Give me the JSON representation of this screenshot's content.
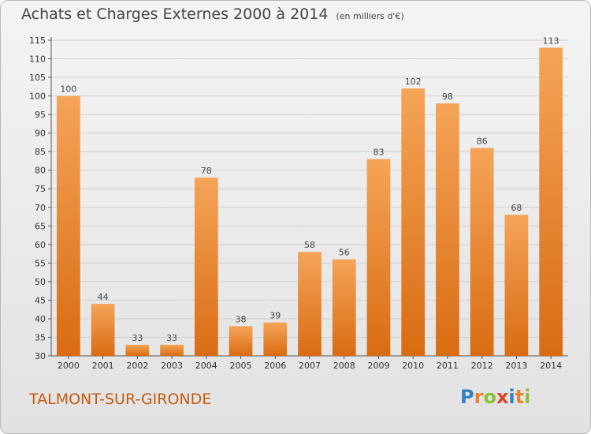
{
  "chart_data": {
    "type": "bar",
    "title": "Achats et Charges Externes 2000 à 2014",
    "subtitle": "(en milliers d'€)",
    "categories": [
      "2000",
      "2001",
      "2002",
      "2003",
      "2004",
      "2005",
      "2006",
      "2007",
      "2008",
      "2009",
      "2010",
      "2011",
      "2012",
      "2013",
      "2014"
    ],
    "values": [
      100,
      44,
      33,
      33,
      78,
      38,
      39,
      58,
      56,
      83,
      102,
      98,
      86,
      68,
      113
    ],
    "xlabel": "",
    "ylabel": "",
    "ylim": [
      30,
      115
    ],
    "yticks": [
      30,
      35,
      40,
      45,
      50,
      55,
      60,
      65,
      70,
      75,
      80,
      85,
      90,
      95,
      100,
      105,
      110,
      115
    ],
    "grid": true,
    "bar_color": "#e8842e"
  },
  "footer": {
    "place": "TALMONT-SUR-GIRONDE",
    "logo": [
      "P",
      "r",
      "o",
      "x",
      "i",
      "t",
      "i"
    ],
    "logo_colors": [
      "#2f82c4",
      "#e8842e",
      "#8cbf3a",
      "#d9482b",
      "#2f82c4",
      "#e8842e",
      "#8cbf3a"
    ]
  }
}
